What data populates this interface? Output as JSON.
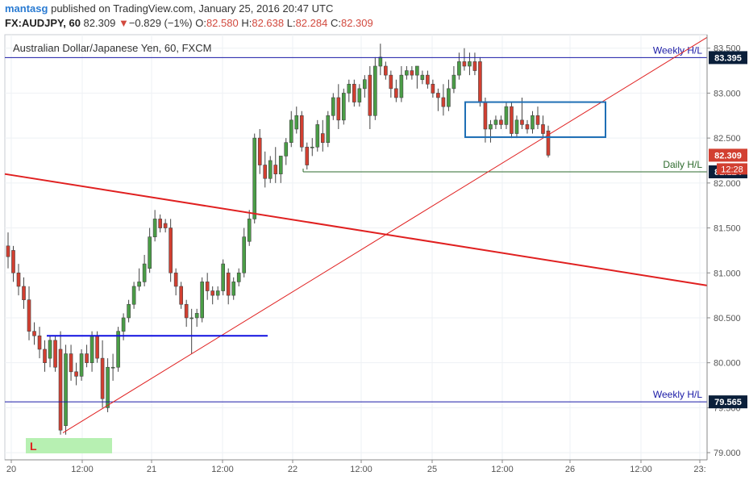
{
  "header": {
    "author": "mantasg",
    "published_text": "published on TradingView.com, January 25, 2016 20:47 UTC",
    "symbol": "FX:AUDJPY, 60",
    "last": "82.309",
    "change_arrow": "▼",
    "change": "−0.829 (−1%)",
    "o_label": "O:",
    "o_value": "82.580",
    "h_label": "H:",
    "h_value": "82.638",
    "l_label": "L:",
    "l_value": "82.284",
    "c_label": "C:",
    "c_value": "82.309"
  },
  "chart_data": {
    "type": "candlestick",
    "title": "Australian Dollar/Japanese Yen, 60, FXCM",
    "x_tick_labels": [
      "20",
      "12:00",
      "21",
      "12:00",
      "22",
      "12:00",
      "25",
      "12:00",
      "26",
      "12:00",
      "23:"
    ],
    "y_tick_labels": [
      "79.000",
      "79.500",
      "80.000",
      "80.500",
      "81.000",
      "81.500",
      "82.000",
      "82.500",
      "83.000",
      "83.500"
    ],
    "ylim": [
      78.92,
      83.65
    ],
    "grid": true,
    "candles": [
      {
        "o": 81.3,
        "h": 81.45,
        "l": 81.05,
        "c": 81.18
      },
      {
        "o": 81.25,
        "h": 81.3,
        "l": 80.9,
        "c": 81.0
      },
      {
        "o": 81.0,
        "h": 81.1,
        "l": 80.75,
        "c": 80.85
      },
      {
        "o": 80.85,
        "h": 80.95,
        "l": 80.6,
        "c": 80.7
      },
      {
        "o": 80.7,
        "h": 80.85,
        "l": 80.25,
        "c": 80.35
      },
      {
        "o": 80.35,
        "h": 80.45,
        "l": 80.2,
        "c": 80.3
      },
      {
        "o": 80.3,
        "h": 80.4,
        "l": 80.05,
        "c": 80.15
      },
      {
        "o": 80.15,
        "h": 80.25,
        "l": 79.9,
        "c": 80.0
      },
      {
        "o": 80.05,
        "h": 80.3,
        "l": 79.95,
        "c": 80.25
      },
      {
        "o": 80.25,
        "h": 80.3,
        "l": 79.9,
        "c": 79.95
      },
      {
        "o": 80.15,
        "h": 80.35,
        "l": 79.2,
        "c": 79.25
      },
      {
        "o": 79.3,
        "h": 80.2,
        "l": 79.2,
        "c": 80.1
      },
      {
        "o": 80.1,
        "h": 80.2,
        "l": 79.8,
        "c": 79.9
      },
      {
        "o": 79.9,
        "h": 80.0,
        "l": 79.75,
        "c": 79.85
      },
      {
        "o": 79.85,
        "h": 80.15,
        "l": 79.8,
        "c": 80.1
      },
      {
        "o": 80.1,
        "h": 80.2,
        "l": 79.95,
        "c": 80.0
      },
      {
        "o": 80.0,
        "h": 80.35,
        "l": 79.9,
        "c": 80.3
      },
      {
        "o": 80.3,
        "h": 80.35,
        "l": 80.0,
        "c": 80.05
      },
      {
        "o": 80.05,
        "h": 80.25,
        "l": 79.5,
        "c": 79.6
      },
      {
        "o": 79.5,
        "h": 80.05,
        "l": 79.45,
        "c": 79.95
      },
      {
        "o": 79.95,
        "h": 80.1,
        "l": 79.8,
        "c": 79.95
      },
      {
        "o": 79.95,
        "h": 80.4,
        "l": 79.9,
        "c": 80.35
      },
      {
        "o": 80.35,
        "h": 80.55,
        "l": 80.25,
        "c": 80.5
      },
      {
        "o": 80.5,
        "h": 80.7,
        "l": 80.45,
        "c": 80.65
      },
      {
        "o": 80.65,
        "h": 80.9,
        "l": 80.6,
        "c": 80.85
      },
      {
        "o": 80.85,
        "h": 81.05,
        "l": 80.8,
        "c": 80.9
      },
      {
        "o": 80.9,
        "h": 81.2,
        "l": 80.85,
        "c": 81.1
      },
      {
        "o": 81.05,
        "h": 81.5,
        "l": 81.0,
        "c": 81.4
      },
      {
        "o": 81.4,
        "h": 81.7,
        "l": 81.35,
        "c": 81.6
      },
      {
        "o": 81.6,
        "h": 81.65,
        "l": 81.45,
        "c": 81.5
      },
      {
        "o": 81.55,
        "h": 81.6,
        "l": 81.45,
        "c": 81.5
      },
      {
        "o": 81.5,
        "h": 81.6,
        "l": 80.9,
        "c": 81.0
      },
      {
        "o": 81.0,
        "h": 81.05,
        "l": 80.75,
        "c": 80.85
      },
      {
        "o": 80.85,
        "h": 80.9,
        "l": 80.6,
        "c": 80.65
      },
      {
        "o": 80.65,
        "h": 80.7,
        "l": 80.4,
        "c": 80.5
      },
      {
        "o": 80.5,
        "h": 80.6,
        "l": 80.1,
        "c": 80.5
      },
      {
        "o": 80.5,
        "h": 80.6,
        "l": 80.4,
        "c": 80.55
      },
      {
        "o": 80.5,
        "h": 80.95,
        "l": 80.45,
        "c": 80.9
      },
      {
        "o": 80.9,
        "h": 81.0,
        "l": 80.7,
        "c": 80.8
      },
      {
        "o": 80.8,
        "h": 80.85,
        "l": 80.65,
        "c": 80.75
      },
      {
        "o": 80.75,
        "h": 80.85,
        "l": 80.7,
        "c": 80.8
      },
      {
        "o": 80.8,
        "h": 81.15,
        "l": 80.75,
        "c": 81.1
      },
      {
        "o": 81.0,
        "h": 81.05,
        "l": 80.65,
        "c": 80.75
      },
      {
        "o": 80.75,
        "h": 80.95,
        "l": 80.7,
        "c": 80.9
      },
      {
        "o": 80.9,
        "h": 81.05,
        "l": 80.85,
        "c": 81.0
      },
      {
        "o": 81.0,
        "h": 81.5,
        "l": 80.95,
        "c": 81.4
      },
      {
        "o": 81.35,
        "h": 81.7,
        "l": 81.3,
        "c": 81.6
      },
      {
        "o": 81.6,
        "h": 82.55,
        "l": 81.55,
        "c": 82.5
      },
      {
        "o": 82.5,
        "h": 82.6,
        "l": 82.1,
        "c": 82.2
      },
      {
        "o": 82.2,
        "h": 82.35,
        "l": 81.95,
        "c": 82.05
      },
      {
        "o": 82.05,
        "h": 82.3,
        "l": 82.0,
        "c": 82.25
      },
      {
        "o": 82.2,
        "h": 82.4,
        "l": 82.0,
        "c": 82.1
      },
      {
        "o": 82.1,
        "h": 82.3,
        "l": 82.0,
        "c": 82.3
      },
      {
        "o": 82.3,
        "h": 82.5,
        "l": 82.2,
        "c": 82.45
      },
      {
        "o": 82.45,
        "h": 82.8,
        "l": 82.4,
        "c": 82.7
      },
      {
        "o": 82.6,
        "h": 82.85,
        "l": 82.55,
        "c": 82.75
      },
      {
        "o": 82.75,
        "h": 82.8,
        "l": 82.35,
        "c": 82.4
      },
      {
        "o": 82.4,
        "h": 82.45,
        "l": 82.15,
        "c": 82.2
      },
      {
        "o": 82.4,
        "h": 82.5,
        "l": 82.3,
        "c": 82.4
      },
      {
        "o": 82.4,
        "h": 82.7,
        "l": 82.35,
        "c": 82.65
      },
      {
        "o": 82.55,
        "h": 82.7,
        "l": 82.35,
        "c": 82.45
      },
      {
        "o": 82.45,
        "h": 82.8,
        "l": 82.4,
        "c": 82.75
      },
      {
        "o": 82.75,
        "h": 83.0,
        "l": 82.7,
        "c": 82.95
      },
      {
        "o": 82.95,
        "h": 83.1,
        "l": 82.6,
        "c": 82.7
      },
      {
        "o": 82.7,
        "h": 83.05,
        "l": 82.65,
        "c": 83.0
      },
      {
        "o": 83.0,
        "h": 83.15,
        "l": 82.9,
        "c": 83.1
      },
      {
        "o": 83.1,
        "h": 83.15,
        "l": 82.85,
        "c": 82.9
      },
      {
        "o": 82.9,
        "h": 83.1,
        "l": 82.85,
        "c": 83.05
      },
      {
        "o": 83.05,
        "h": 83.2,
        "l": 82.95,
        "c": 83.15
      },
      {
        "o": 83.2,
        "h": 83.3,
        "l": 82.6,
        "c": 82.75
      },
      {
        "o": 82.75,
        "h": 83.4,
        "l": 82.7,
        "c": 83.3
      },
      {
        "o": 83.3,
        "h": 83.55,
        "l": 83.2,
        "c": 83.4
      },
      {
        "o": 83.3,
        "h": 83.35,
        "l": 83.15,
        "c": 83.2
      },
      {
        "o": 83.2,
        "h": 83.25,
        "l": 82.95,
        "c": 83.05
      },
      {
        "o": 83.05,
        "h": 83.15,
        "l": 82.9,
        "c": 82.95
      },
      {
        "o": 82.95,
        "h": 83.3,
        "l": 82.9,
        "c": 83.2
      },
      {
        "o": 83.2,
        "h": 83.3,
        "l": 83.15,
        "c": 83.25
      },
      {
        "o": 83.25,
        "h": 83.3,
        "l": 83.15,
        "c": 83.2
      },
      {
        "o": 83.2,
        "h": 83.3,
        "l": 83.05,
        "c": 83.3
      },
      {
        "o": 83.15,
        "h": 83.25,
        "l": 83.1,
        "c": 83.2
      },
      {
        "o": 83.2,
        "h": 83.25,
        "l": 83.05,
        "c": 83.1
      },
      {
        "o": 83.1,
        "h": 83.15,
        "l": 82.95,
        "c": 83.0
      },
      {
        "o": 83.0,
        "h": 83.05,
        "l": 82.8,
        "c": 82.95
      },
      {
        "o": 82.95,
        "h": 83.1,
        "l": 82.75,
        "c": 82.85
      },
      {
        "o": 82.85,
        "h": 83.15,
        "l": 82.8,
        "c": 83.05
      },
      {
        "o": 83.05,
        "h": 83.3,
        "l": 83.0,
        "c": 83.2
      },
      {
        "o": 83.2,
        "h": 83.45,
        "l": 83.15,
        "c": 83.35
      },
      {
        "o": 83.35,
        "h": 83.5,
        "l": 83.25,
        "c": 83.3
      },
      {
        "o": 83.3,
        "h": 83.45,
        "l": 83.2,
        "c": 83.35
      },
      {
        "o": 83.35,
        "h": 83.45,
        "l": 83.2,
        "c": 83.25
      },
      {
        "o": 83.35,
        "h": 83.4,
        "l": 82.85,
        "c": 82.9
      },
      {
        "o": 82.9,
        "h": 82.95,
        "l": 82.45,
        "c": 82.6
      },
      {
        "o": 82.6,
        "h": 82.7,
        "l": 82.45,
        "c": 82.65
      },
      {
        "o": 82.65,
        "h": 82.75,
        "l": 82.6,
        "c": 82.7
      },
      {
        "o": 82.7,
        "h": 82.75,
        "l": 82.6,
        "c": 82.65
      },
      {
        "o": 82.65,
        "h": 82.9,
        "l": 82.6,
        "c": 82.85
      },
      {
        "o": 82.85,
        "h": 82.9,
        "l": 82.5,
        "c": 82.55
      },
      {
        "o": 82.55,
        "h": 82.75,
        "l": 82.5,
        "c": 82.7
      },
      {
        "o": 82.7,
        "h": 82.95,
        "l": 82.6,
        "c": 82.65
      },
      {
        "o": 82.65,
        "h": 82.7,
        "l": 82.55,
        "c": 82.6
      },
      {
        "o": 82.6,
        "h": 82.8,
        "l": 82.55,
        "c": 82.75
      },
      {
        "o": 82.75,
        "h": 82.85,
        "l": 82.6,
        "c": 82.65
      },
      {
        "o": 82.65,
        "h": 82.75,
        "l": 82.5,
        "c": 82.55
      },
      {
        "o": 82.58,
        "h": 82.638,
        "l": 82.284,
        "c": 82.309
      }
    ],
    "horizontal_lines": [
      {
        "label": "Weekly H/L",
        "value": 83.395,
        "value_label": "83.395",
        "color": "#1a1aa6"
      },
      {
        "label": "Weekly H/L",
        "value": 79.565,
        "value_label": "79.565",
        "color": "#1a1aa6"
      },
      {
        "label": "Daily H/L",
        "value": 82.124,
        "value_label": "82.124",
        "color": "#2e6b2e"
      }
    ],
    "current_price_label": "82.309",
    "countdown_label": "12:28",
    "low_marker_label": "L",
    "colors": {
      "up": "#4a9d46",
      "down": "#d23f31",
      "trend_red": "#e02020",
      "support_blue": "#1010e0",
      "box_blue": "#1f6fb5",
      "grid": "#eef1f4",
      "axis_text": "#555555"
    }
  }
}
